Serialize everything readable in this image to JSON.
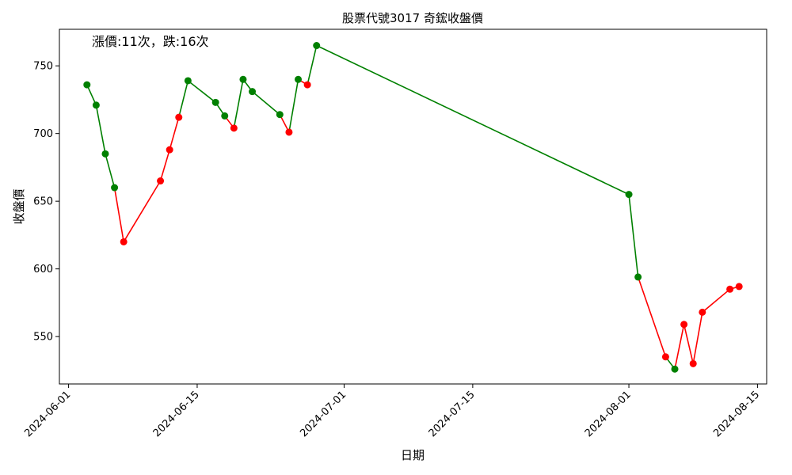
{
  "chart_data": {
    "type": "line",
    "title": "股票代號3017 奇鋐收盤價",
    "xlabel": "日期",
    "ylabel": "收盤價",
    "annotation": "漲價:11次，跌:16次",
    "x_ticks": [
      "2024-06-01",
      "2024-06-15",
      "2024-07-01",
      "2024-07-15",
      "2024-08-01",
      "2024-08-15"
    ],
    "y_ticks": [
      550,
      600,
      650,
      700,
      750
    ],
    "ylim": [
      515,
      777
    ],
    "xlim": [
      "2024-05-31",
      "2024-08-16"
    ],
    "grid": false,
    "colors": {
      "up": "#ff0000",
      "down": "#008000"
    },
    "points": [
      {
        "x": "2024-06-03",
        "y": 736
      },
      {
        "x": "2024-06-04",
        "y": 721
      },
      {
        "x": "2024-06-05",
        "y": 685
      },
      {
        "x": "2024-06-06",
        "y": 660
      },
      {
        "x": "2024-06-07",
        "y": 620
      },
      {
        "x": "2024-06-11",
        "y": 665
      },
      {
        "x": "2024-06-12",
        "y": 688
      },
      {
        "x": "2024-06-13",
        "y": 712
      },
      {
        "x": "2024-06-14",
        "y": 739
      },
      {
        "x": "2024-06-17",
        "y": 723
      },
      {
        "x": "2024-06-18",
        "y": 713
      },
      {
        "x": "2024-06-19",
        "y": 704
      },
      {
        "x": "2024-06-20",
        "y": 740
      },
      {
        "x": "2024-06-21",
        "y": 731
      },
      {
        "x": "2024-06-24",
        "y": 714
      },
      {
        "x": "2024-06-25",
        "y": 701
      },
      {
        "x": "2024-06-26",
        "y": 740
      },
      {
        "x": "2024-06-27",
        "y": 736
      },
      {
        "x": "2024-06-28",
        "y": 765
      },
      {
        "x": "2024-08-01",
        "y": 655
      },
      {
        "x": "2024-08-02",
        "y": 594
      },
      {
        "x": "2024-08-05",
        "y": 535
      },
      {
        "x": "2024-08-06",
        "y": 526
      },
      {
        "x": "2024-08-07",
        "y": 559
      },
      {
        "x": "2024-08-08",
        "y": 530
      },
      {
        "x": "2024-08-09",
        "y": 568
      },
      {
        "x": "2024-08-12",
        "y": 585
      },
      {
        "x": "2024-08-13",
        "y": 587
      }
    ],
    "point_colors": [
      "down",
      "down",
      "down",
      "down",
      "up",
      "up",
      "up",
      "up",
      "down",
      "down",
      "down",
      "up",
      "down",
      "down",
      "down",
      "up",
      "down",
      "up",
      "down",
      "down",
      "down",
      "up",
      "down",
      "up",
      "up",
      "up",
      "up",
      "up"
    ]
  }
}
